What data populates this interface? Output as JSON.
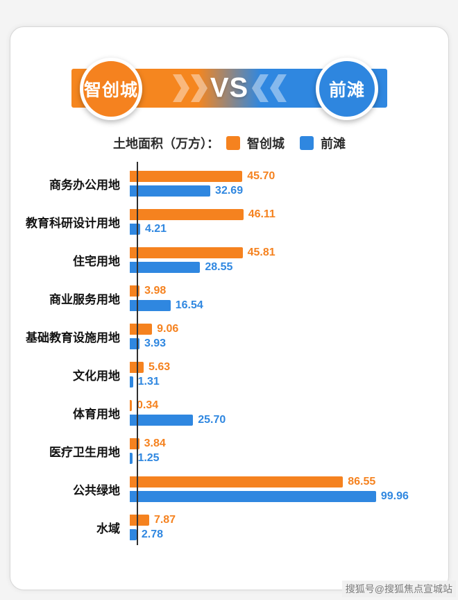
{
  "header": {
    "left_badge": "智创城",
    "vs_label": "VS",
    "right_badge": "前滩"
  },
  "legend": {
    "title": "土地面积（万方）：",
    "items": [
      {
        "label": "智创城",
        "color": "#F5821F"
      },
      {
        "label": "前滩",
        "color": "#2F87E0"
      }
    ]
  },
  "watermark": "搜狐号@搜狐焦点宣城站",
  "chart_data": {
    "type": "bar",
    "orientation": "horizontal",
    "title": "土地面积（万方）",
    "categories": [
      "商务办公用地",
      "教育科研设计用地",
      "住宅用地",
      "商业服务用地",
      "基础教育设施用地",
      "文化用地",
      "体育用地",
      "医疗卫生用地",
      "公共绿地",
      "水域"
    ],
    "series": [
      {
        "name": "智创城",
        "key": "zhichuangcheng",
        "color": "#F5821F",
        "values": [
          45.7,
          46.11,
          45.81,
          3.98,
          9.06,
          5.63,
          0.34,
          3.84,
          86.55,
          7.87
        ]
      },
      {
        "name": "前滩",
        "key": "qiantan",
        "color": "#2F87E0",
        "values": [
          32.69,
          4.21,
          28.55,
          16.54,
          3.93,
          1.31,
          25.7,
          1.25,
          99.96,
          2.78
        ]
      }
    ],
    "value_format": "2dp",
    "xlim": [
      0,
      100
    ],
    "legend_position": "top",
    "grid": false
  }
}
